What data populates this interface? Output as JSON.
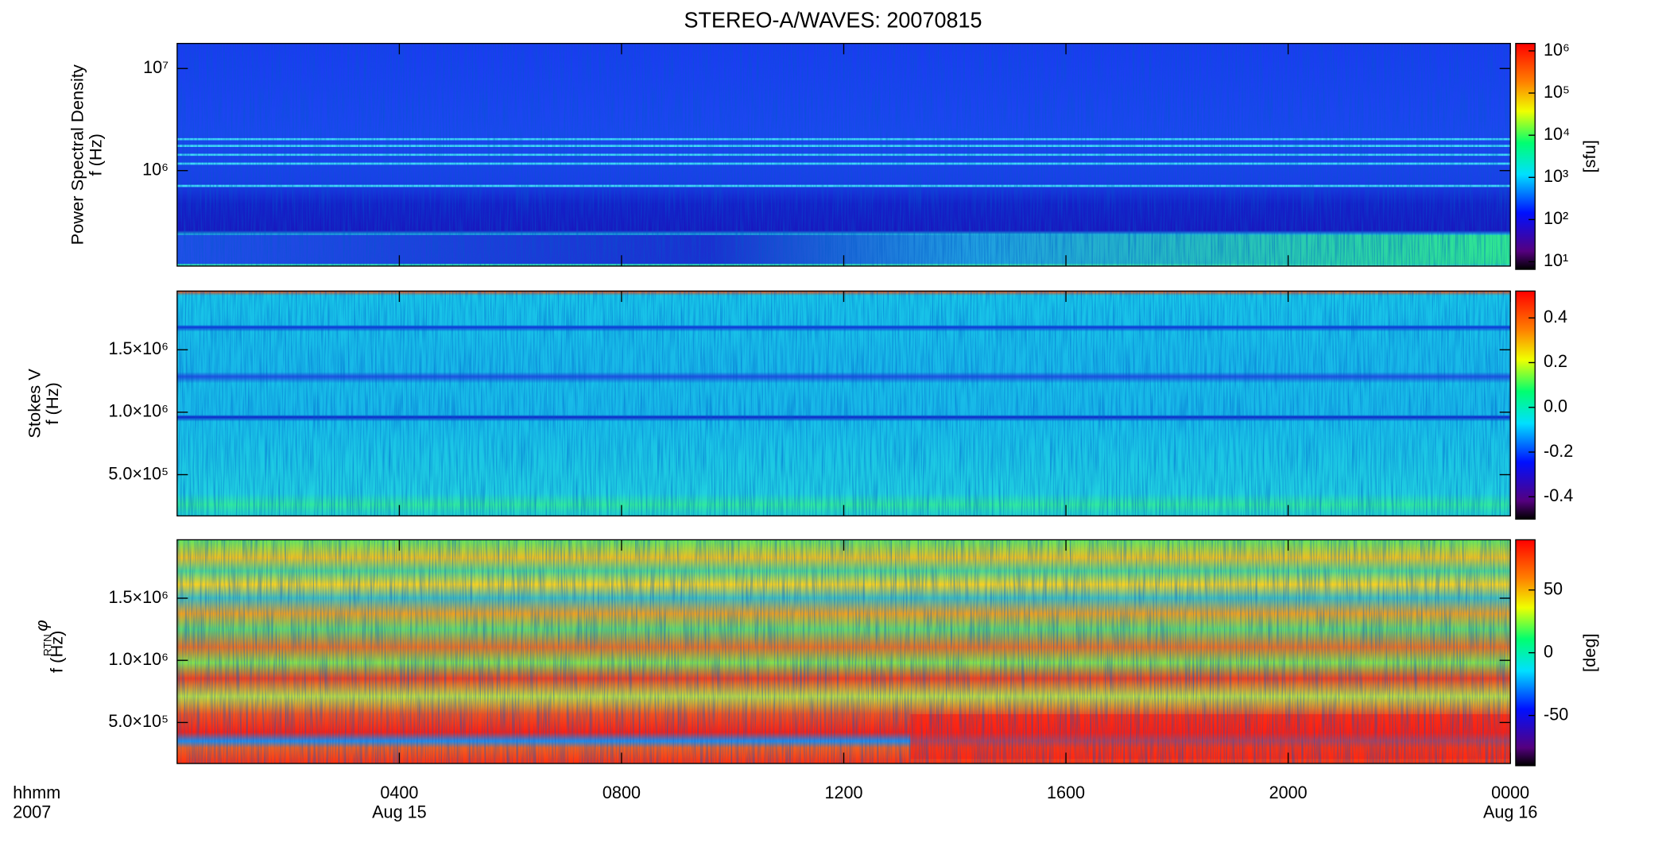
{
  "chart_data": {
    "type": "spectrogram",
    "title": "STEREO-A/WAVES: 20070815",
    "xlim": [
      0,
      24
    ],
    "xticks": [
      {
        "value": 4,
        "label": "0400"
      },
      {
        "value": 8,
        "label": "0800"
      },
      {
        "value": 12,
        "label": "1200"
      },
      {
        "value": 16,
        "label": "1600"
      },
      {
        "value": 20,
        "label": "2000"
      },
      {
        "value": 24,
        "label": "0000"
      }
    ],
    "x_date_labels": [
      {
        "value": 4,
        "label": "Aug 15"
      },
      {
        "value": 24,
        "label": "Aug 16"
      }
    ],
    "x_axis_labels": [
      "hhmm",
      "2007"
    ],
    "panels": [
      {
        "ylabel": [
          "Power Spectral Density",
          "f (Hz)"
        ],
        "yscale": "log",
        "ylim": [
          116000,
          17600000
        ],
        "yticks": [
          {
            "value": 1000000,
            "label": "10⁶"
          },
          {
            "value": 10000000,
            "label": "10⁷"
          }
        ],
        "colorbar": {
          "scale": "log",
          "lim": [
            6.6,
            1500000
          ],
          "label": "[sfu]",
          "ticks": [
            {
              "value": 10,
              "label": "10¹"
            },
            {
              "value": 100,
              "label": "10²"
            },
            {
              "value": 1000,
              "label": "10³"
            },
            {
              "value": 10000,
              "label": "10⁴"
            },
            {
              "value": 100000,
              "label": "10⁵"
            },
            {
              "value": 1000000,
              "label": "10⁶"
            }
          ]
        }
      },
      {
        "ylabel": [
          "Stokes V",
          "f (Hz)"
        ],
        "yscale": "linear",
        "ylim": [
          170000,
          1970000
        ],
        "yticks": [
          {
            "value": 500000,
            "label": "5.0×10⁵"
          },
          {
            "value": 1000000,
            "label": "1.0×10⁶"
          },
          {
            "value": 1500000,
            "label": "1.5×10⁶"
          }
        ],
        "colorbar": {
          "scale": "linear",
          "lim": [
            -0.5,
            0.52
          ],
          "ticks": [
            -0.4,
            -0.2,
            {
              "value": 0,
              "label": "0.0"
            },
            0.2,
            0.4
          ]
        }
      },
      {
        "ylabel": [
          "φ",
          "RTN",
          "f (Hz)"
        ],
        "yscale": "linear",
        "ylim": [
          170000,
          1970000
        ],
        "yticks": [
          {
            "value": 500000,
            "label": "5.0×10⁵"
          },
          {
            "value": 1000000,
            "label": "1.0×10⁶"
          },
          {
            "value": 1500000,
            "label": "1.5×10⁶"
          }
        ],
        "colorbar": {
          "scale": "linear",
          "lim": [
            -90,
            90
          ],
          "label": "[deg]",
          "ticks": [
            -50,
            0,
            50
          ]
        }
      }
    ]
  }
}
